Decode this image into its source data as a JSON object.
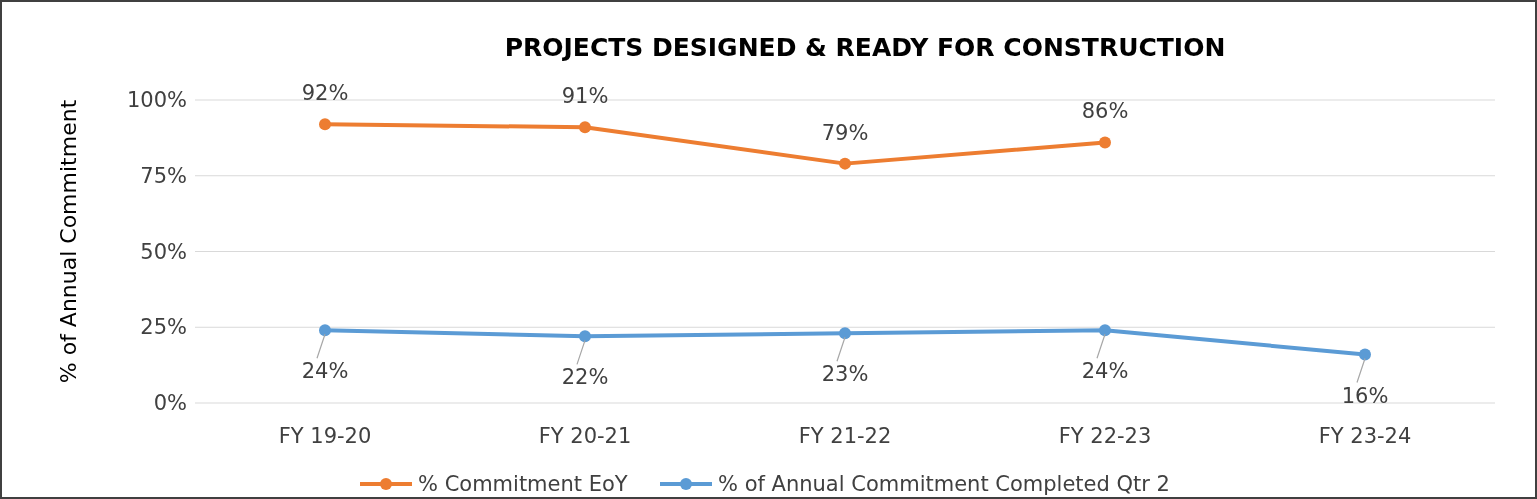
{
  "chart_data": {
    "type": "line",
    "title": "PROJECTS DESIGNED & READY FOR CONSTRUCTION",
    "ylabel": "% of Annual Commitment",
    "categories": [
      "FY 19-20",
      "FY 20-21",
      "FY 21-22",
      "FY 22-23",
      "FY 23-24"
    ],
    "series": [
      {
        "name": "% Commitment EoY",
        "color": "#ed7d31",
        "values": [
          92,
          91,
          79,
          86,
          null
        ],
        "value_labels": [
          "92%",
          "91%",
          "79%",
          "86%",
          null
        ]
      },
      {
        "name": "% of Annual Commitment Completed Qtr 2",
        "color": "#5b9bd5",
        "values": [
          24,
          22,
          23,
          24,
          16
        ],
        "value_labels": [
          "24%",
          "22%",
          "23%",
          "24%",
          "16%"
        ]
      }
    ],
    "ylim": [
      0,
      100
    ],
    "yticks": [
      {
        "value": 0,
        "label": "0%"
      },
      {
        "value": 25,
        "label": "25%"
      },
      {
        "value": 50,
        "label": "50%"
      },
      {
        "value": 75,
        "label": "75%"
      },
      {
        "value": 100,
        "label": "100%"
      }
    ],
    "grid": "y",
    "legend": "bottom",
    "marker": "circle",
    "line_style": "solid"
  }
}
